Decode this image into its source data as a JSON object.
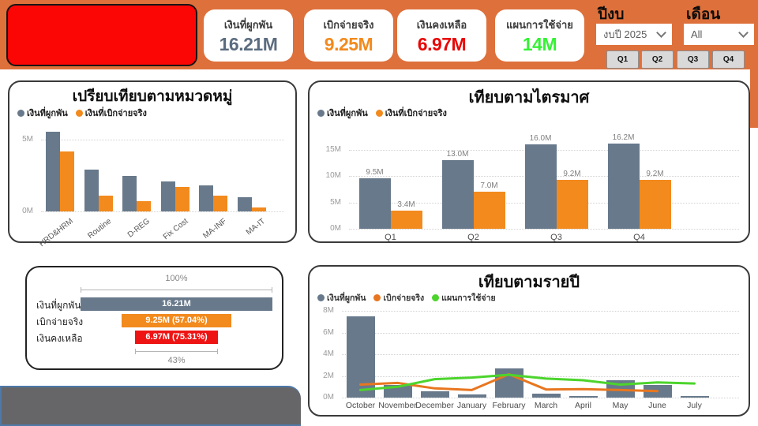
{
  "colors": {
    "header_bg": "#DE703B",
    "logo_red": "#FB0505",
    "button_bg": "#D9D9D9",
    "bar_gray": "#68798B",
    "bar_orange": "#F28A1D",
    "line_orange": "#E8761F",
    "line_green": "#4CD42C",
    "funnel_red": "#EE1414"
  },
  "header": {
    "kpis": [
      {
        "label": "เงินที่ผูกพัน",
        "value": "16.21M",
        "color": "#5B6C80"
      },
      {
        "label": "เบิกจ่ายจริง",
        "value": "9.25M",
        "color": "#F28A1D"
      },
      {
        "label": "เงินคงเหลือ",
        "value": "6.97M",
        "color": "#E80707"
      },
      {
        "label": "แผนการใช้จ่าย",
        "value": "14M",
        "color": "#35F235"
      }
    ],
    "year_filter": {
      "label": "ปีงบ",
      "value": "งบปี 2025"
    },
    "month_filter": {
      "label": "เดือน",
      "value": "All"
    },
    "quarter_buttons": [
      "Q1",
      "Q2",
      "Q3",
      "Q4"
    ]
  },
  "chart_data": [
    {
      "type": "bar",
      "title": "เปรียบเทียบตามหมวดหมู่",
      "legend_position": "top-left",
      "grid": true,
      "unit": "M",
      "categories": [
        "HRD&HRM",
        "Routine",
        "D-REG",
        "Fix Cost",
        "MA-INF",
        "MA-IT"
      ],
      "series": [
        {
          "name": "เงินที่ผูกพัน",
          "color": "#68798B",
          "values": [
            5.6,
            2.9,
            2.5,
            2.1,
            1.8,
            1.0
          ]
        },
        {
          "name": "เงินที่เบิกจ่ายจริง",
          "color": "#F28A1D",
          "values": [
            4.2,
            1.1,
            0.7,
            1.7,
            1.1,
            0.3
          ]
        }
      ],
      "ylim": [
        0,
        6.4
      ],
      "yticks": [
        0,
        5
      ]
    },
    {
      "type": "bar",
      "title": "เทียบตามไตรมาศ",
      "legend_position": "top-left",
      "grid": true,
      "unit": "M",
      "categories": [
        "Q1",
        "Q2",
        "Q3",
        "Q4"
      ],
      "series": [
        {
          "name": "เงินที่ผูกพัน",
          "color": "#68798B",
          "values": [
            9.5,
            13.0,
            16.0,
            16.2
          ],
          "labels": [
            "9.5M",
            "13.0M",
            "16.0M",
            "16.2M"
          ]
        },
        {
          "name": "เงินที่เบิกจ่ายจริง",
          "color": "#F28A1D",
          "values": [
            3.4,
            7.0,
            9.2,
            9.2
          ],
          "labels": [
            "3.4M",
            "7.0M",
            "9.2M",
            "9.2M"
          ]
        }
      ],
      "ylim": [
        0,
        20
      ],
      "yticks": [
        0,
        5,
        10,
        15
      ]
    },
    {
      "type": "funnel",
      "top_label": "100%",
      "bottom_label": "43%",
      "rows": [
        {
          "label": "เงินที่ผูกพัน",
          "bar_text": "16.21M",
          "pct_of_first": 100,
          "color": "#68798B"
        },
        {
          "label": "เบิกจ่ายจริง",
          "bar_text": "9.25M (57.04%)",
          "pct_of_first": 57.04,
          "color": "#F28A1D"
        },
        {
          "label": "เงินคงเหลือ",
          "bar_text": "6.97M (75.31%)",
          "pct_of_first": 43.0,
          "color": "#EE1414"
        }
      ]
    },
    {
      "type": "bar+line",
      "title": "เทียบตามรายปี",
      "legend_position": "top-left",
      "grid": true,
      "unit": "M",
      "categories": [
        "October",
        "November",
        "December",
        "January",
        "February",
        "March",
        "April",
        "May",
        "June",
        "July"
      ],
      "series": [
        {
          "name": "เงินที่ผูกพัน",
          "kind": "bar",
          "color": "#68798B",
          "values": [
            7.5,
            1.2,
            0.55,
            0.3,
            2.7,
            0.4,
            0.18,
            1.6,
            1.2,
            0.12
          ]
        },
        {
          "name": "เบิกจ่ายจริง",
          "kind": "line",
          "color": "#E8761F",
          "values": [
            1.2,
            1.35,
            0.85,
            0.7,
            2.15,
            0.75,
            0.78,
            0.7,
            0.6,
            null
          ]
        },
        {
          "name": "แผนการใช้จ่าย",
          "kind": "line",
          "color": "#4CD42C",
          "values": [
            0.7,
            1.0,
            1.7,
            1.85,
            2.1,
            1.75,
            1.6,
            1.2,
            1.4,
            1.3
          ]
        }
      ],
      "ylim": [
        0,
        8
      ],
      "yticks": [
        0,
        2,
        4,
        6,
        8
      ]
    }
  ]
}
